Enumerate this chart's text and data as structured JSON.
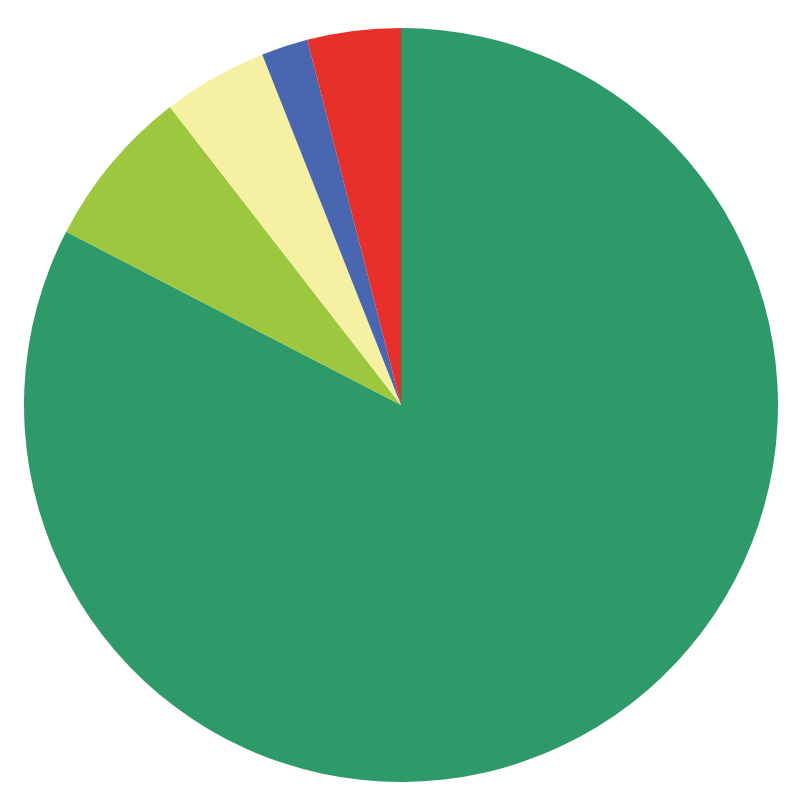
{
  "chart_data": {
    "type": "pie",
    "categories": [
      null,
      null,
      null,
      null,
      null
    ],
    "values": [
      82.6,
      6.9,
      4.5,
      2.0,
      4.0
    ],
    "colors": [
      "#2e9a6a",
      "#9dc73e",
      "#f6f1a2",
      "#4a66b0",
      "#e8302a"
    ],
    "legend": false
  }
}
